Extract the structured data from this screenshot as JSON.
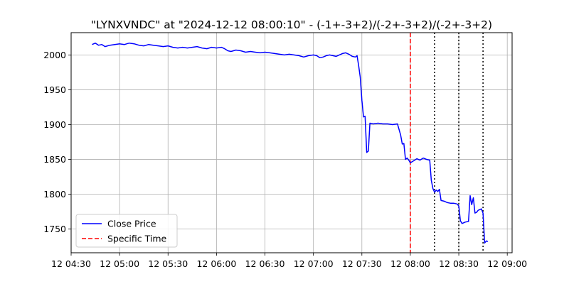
{
  "chart_data": {
    "type": "line",
    "title": "\"LYNXVNDC\" at \"2024-12-12 08:00:10\" - (-1+-3+2)/(-2+-3+2)/(-2+-3+2)",
    "xlabel": "",
    "ylabel": "",
    "x_ticks": [
      {
        "t": "04:30",
        "label": "12 04:30"
      },
      {
        "t": "05:00",
        "label": "12 05:00"
      },
      {
        "t": "05:30",
        "label": "12 05:30"
      },
      {
        "t": "06:00",
        "label": "12 06:00"
      },
      {
        "t": "06:30",
        "label": "12 06:30"
      },
      {
        "t": "07:00",
        "label": "12 07:00"
      },
      {
        "t": "07:30",
        "label": "12 07:30"
      },
      {
        "t": "08:00",
        "label": "12 08:00"
      },
      {
        "t": "08:30",
        "label": "12 08:30"
      },
      {
        "t": "09:00",
        "label": "12 09:00"
      }
    ],
    "y_ticks": [
      1750,
      1800,
      1850,
      1900,
      1950,
      2000
    ],
    "xlim": [
      "04:30",
      "09:03"
    ],
    "ylim": [
      1716,
      2032
    ],
    "grid": true,
    "legend_position": "lower-left",
    "series": [
      {
        "name": "Close Price",
        "color": "#0000ff",
        "style": "solid",
        "points": [
          [
            "04:43",
            2015
          ],
          [
            "04:45",
            2017
          ],
          [
            "04:47",
            2014
          ],
          [
            "04:49",
            2015
          ],
          [
            "04:51",
            2012
          ],
          [
            "04:54",
            2014
          ],
          [
            "04:57",
            2015
          ],
          [
            "05:00",
            2016
          ],
          [
            "05:03",
            2015
          ],
          [
            "05:06",
            2017
          ],
          [
            "05:09",
            2016
          ],
          [
            "05:12",
            2014
          ],
          [
            "05:15",
            2013
          ],
          [
            "05:18",
            2015
          ],
          [
            "05:21",
            2014
          ],
          [
            "05:24",
            2013
          ],
          [
            "05:27",
            2012
          ],
          [
            "05:30",
            2013
          ],
          [
            "05:33",
            2011
          ],
          [
            "05:36",
            2010
          ],
          [
            "05:39",
            2011
          ],
          [
            "05:42",
            2010
          ],
          [
            "05:45",
            2011
          ],
          [
            "05:48",
            2012
          ],
          [
            "05:51",
            2010
          ],
          [
            "05:54",
            2009
          ],
          [
            "05:57",
            2011
          ],
          [
            "06:00",
            2010
          ],
          [
            "06:03",
            2011
          ],
          [
            "06:05",
            2009
          ],
          [
            "06:07",
            2006
          ],
          [
            "06:09",
            2005
          ],
          [
            "06:12",
            2007
          ],
          [
            "06:15",
            2006
          ],
          [
            "06:18",
            2004
          ],
          [
            "06:21",
            2005
          ],
          [
            "06:24",
            2004
          ],
          [
            "06:27",
            2003
          ],
          [
            "06:30",
            2004
          ],
          [
            "06:33",
            2003
          ],
          [
            "06:36",
            2002
          ],
          [
            "06:39",
            2001
          ],
          [
            "06:42",
            2000
          ],
          [
            "06:45",
            2001
          ],
          [
            "06:48",
            2000
          ],
          [
            "06:51",
            1999
          ],
          [
            "06:54",
            1997
          ],
          [
            "06:57",
            1999
          ],
          [
            "07:00",
            2000
          ],
          [
            "07:02",
            1999
          ],
          [
            "07:04",
            1996
          ],
          [
            "07:06",
            1997
          ],
          [
            "07:08",
            1999
          ],
          [
            "07:10",
            2000
          ],
          [
            "07:12",
            1999
          ],
          [
            "07:14",
            1998
          ],
          [
            "07:16",
            2000
          ],
          [
            "07:18",
            2002
          ],
          [
            "07:20",
            2003
          ],
          [
            "07:22",
            2001
          ],
          [
            "07:24",
            1998
          ],
          [
            "07:26",
            1997
          ],
          [
            "07:27",
            1999
          ],
          [
            "07:28",
            1985
          ],
          [
            "07:29",
            1968
          ],
          [
            "07:30",
            1935
          ],
          [
            "07:31",
            1911
          ],
          [
            "07:32",
            1912
          ],
          [
            "07:33",
            1860
          ],
          [
            "07:34",
            1862
          ],
          [
            "07:35",
            1902
          ],
          [
            "07:37",
            1901
          ],
          [
            "07:40",
            1902
          ],
          [
            "07:43",
            1901
          ],
          [
            "07:46",
            1901
          ],
          [
            "07:49",
            1900
          ],
          [
            "07:52",
            1901
          ],
          [
            "07:54",
            1885
          ],
          [
            "07:55",
            1872
          ],
          [
            "07:56",
            1873
          ],
          [
            "07:57",
            1850
          ],
          [
            "07:58",
            1852
          ],
          [
            "07:59",
            1849
          ],
          [
            "08:00",
            1845
          ],
          [
            "08:02",
            1848
          ],
          [
            "08:04",
            1851
          ],
          [
            "08:06",
            1849
          ],
          [
            "08:08",
            1852
          ],
          [
            "08:10",
            1850
          ],
          [
            "08:12",
            1849
          ],
          [
            "08:13",
            1820
          ],
          [
            "08:14",
            1808
          ],
          [
            "08:15",
            1803
          ],
          [
            "08:16",
            1806
          ],
          [
            "08:17",
            1804
          ],
          [
            "08:18",
            1807
          ],
          [
            "08:19",
            1791
          ],
          [
            "08:21",
            1790
          ],
          [
            "08:23",
            1788
          ],
          [
            "08:25",
            1787
          ],
          [
            "08:27",
            1787
          ],
          [
            "08:29",
            1786
          ],
          [
            "08:30",
            1783
          ],
          [
            "08:31",
            1762
          ],
          [
            "08:32",
            1758
          ],
          [
            "08:34",
            1760
          ],
          [
            "08:36",
            1761
          ],
          [
            "08:37",
            1798
          ],
          [
            "08:38",
            1785
          ],
          [
            "08:39",
            1795
          ],
          [
            "08:40",
            1773
          ],
          [
            "08:41",
            1774
          ],
          [
            "08:42",
            1777
          ],
          [
            "08:44",
            1779
          ],
          [
            "08:45",
            1773
          ],
          [
            "08:46",
            1730
          ],
          [
            "08:47",
            1733
          ],
          [
            "08:48",
            1732
          ]
        ]
      }
    ],
    "vlines": [
      {
        "name": "Specific Time",
        "time": "08:00",
        "color": "#ff0000",
        "style": "dashed"
      },
      {
        "name": "",
        "time": "08:15",
        "color": "#000000",
        "style": "dotted"
      },
      {
        "name": "",
        "time": "08:30",
        "color": "#000000",
        "style": "dotted"
      },
      {
        "name": "",
        "time": "08:45",
        "color": "#000000",
        "style": "dotted"
      }
    ],
    "legend": [
      {
        "label": "Close Price",
        "color": "#0000ff",
        "style": "solid"
      },
      {
        "label": "Specific Time",
        "color": "#ff0000",
        "style": "dashed"
      }
    ]
  }
}
